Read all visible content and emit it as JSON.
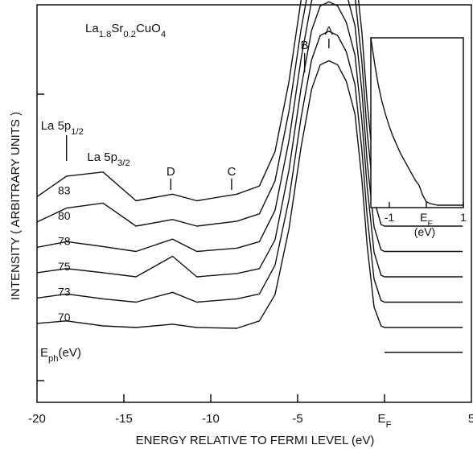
{
  "chart_data": {
    "type": "line",
    "xlabel": "ENERGY RELATIVE TO FERMI LEVEL  (eV)",
    "ylabel": "INTENSITY  ( ARBITRARY UNITS )",
    "xlim": [
      -20,
      5
    ],
    "x_ticks": [
      -20,
      -15,
      -10,
      -5,
      0,
      5
    ],
    "x_tick_labels": [
      "-20",
      "-15",
      "-10",
      "-5",
      "E_F",
      "5"
    ],
    "y_ticks_shown": false,
    "grid": false,
    "compound": {
      "main": "La",
      "parts": [
        [
          "1.8",
          "Sr"
        ],
        [
          "0.2",
          "CuO"
        ],
        [
          "4",
          ""
        ]
      ]
    },
    "photon_energy_label": {
      "main": "E",
      "sub": "ph",
      "rest": "(eV)"
    },
    "peak_labels": [
      {
        "text": "A",
        "x": -3.2
      },
      {
        "text": "B",
        "x": -4.6
      },
      {
        "text": "C",
        "x": -8.8
      },
      {
        "text": "D",
        "x": -12.3
      }
    ],
    "core_level_labels": [
      {
        "main": "La 5p",
        "sub": "1/2",
        "x": -18.3
      },
      {
        "main": "La 5p",
        "sub": "3/2",
        "x": -16.0
      }
    ],
    "series": [
      {
        "name": "70",
        "x": [
          -20,
          -18.3,
          -16.2,
          -14.3,
          -12.2,
          -10.8,
          -8.5,
          -7.2,
          -6.3,
          -5.5,
          -4.8,
          -4.2,
          -3.7,
          -3.2,
          -2.7,
          -2.2,
          -1.7,
          -1.3,
          -1.0,
          -0.6,
          -0.2,
          0,
          1,
          2,
          3,
          4.5
        ],
        "y": [
          0.05,
          0.08,
          0.02,
          0.0,
          0.04,
          0.0,
          -0.01,
          0.08,
          0.4,
          1.2,
          2.2,
          2.9,
          3.2,
          3.25,
          3.2,
          3.0,
          2.6,
          1.8,
          1.0,
          0.25,
          0.02,
          0,
          0,
          0,
          0,
          0
        ]
      },
      {
        "name": "73",
        "x": [
          -20,
          -18.3,
          -16.2,
          -14.3,
          -12.2,
          -10.8,
          -8.5,
          -7.2,
          -6.3,
          -5.5,
          -4.8,
          -4.2,
          -3.7,
          -3.2,
          -2.7,
          -2.2,
          -1.7,
          -1.3,
          -1.0,
          -0.6,
          -0.2,
          0,
          1,
          2,
          3,
          4.5
        ],
        "y": [
          0.05,
          0.1,
          0.04,
          0.0,
          0.12,
          0.0,
          0.04,
          0.1,
          0.45,
          1.25,
          2.25,
          2.95,
          3.25,
          3.3,
          3.25,
          3.05,
          2.65,
          1.85,
          1.05,
          0.28,
          0.02,
          0,
          0,
          0,
          0,
          0
        ]
      },
      {
        "name": "75",
        "x": [
          -20,
          -18.3,
          -16.2,
          -14.3,
          -12.2,
          -10.8,
          -8.5,
          -7.2,
          -6.3,
          -5.5,
          -4.8,
          -4.2,
          -3.7,
          -3.2,
          -2.7,
          -2.2,
          -1.7,
          -1.3,
          -1.0,
          -0.6,
          -0.2,
          0,
          1,
          2,
          3,
          4.5
        ],
        "y": [
          0.05,
          0.1,
          0.05,
          0.0,
          0.25,
          0.0,
          0.04,
          0.1,
          0.45,
          1.3,
          2.3,
          3.0,
          3.3,
          3.35,
          3.3,
          3.1,
          2.7,
          1.9,
          1.1,
          0.3,
          0.02,
          0,
          0,
          0,
          0,
          0
        ]
      },
      {
        "name": "78",
        "x": [
          -20,
          -18.3,
          -16.2,
          -14.3,
          -12.2,
          -10.8,
          -8.5,
          -7.2,
          -6.3,
          -5.5,
          -4.8,
          -4.2,
          -3.7,
          -3.2,
          -2.7,
          -2.2,
          -1.7,
          -1.3,
          -1.0,
          -0.6,
          -0.2,
          0,
          1,
          2,
          3,
          4.5
        ],
        "y": [
          0.05,
          0.12,
          0.06,
          0.0,
          0.15,
          0.0,
          0.04,
          0.12,
          0.5,
          1.35,
          2.35,
          3.05,
          3.35,
          3.4,
          3.35,
          3.15,
          2.75,
          1.95,
          1.1,
          0.3,
          0.02,
          0,
          0,
          0,
          0,
          0
        ]
      },
      {
        "name": "80",
        "x": [
          -20,
          -18.3,
          -16.2,
          -14.3,
          -12.2,
          -10.8,
          -8.5,
          -7.2,
          -6.3,
          -5.5,
          -4.8,
          -4.2,
          -3.7,
          -3.2,
          -2.7,
          -2.2,
          -1.7,
          -1.3,
          -1.0,
          -0.6,
          -0.2,
          0,
          1,
          2,
          3,
          4.5
        ],
        "y": [
          0.05,
          0.22,
          0.28,
          0.0,
          0.08,
          0.0,
          0.06,
          0.15,
          0.55,
          1.4,
          2.4,
          3.1,
          3.4,
          3.45,
          3.4,
          3.2,
          2.8,
          2.0,
          1.15,
          0.32,
          0.02,
          0,
          0,
          0,
          0,
          0
        ]
      },
      {
        "name": "83",
        "x": [
          -20,
          -18.3,
          -16.2,
          -14.3,
          -12.2,
          -10.8,
          -8.5,
          -7.2,
          -6.3,
          -5.5,
          -4.8,
          -4.2,
          -3.7,
          -3.2,
          -2.7,
          -2.2,
          -1.7,
          -1.3,
          -1.0,
          -0.6,
          -0.2,
          0,
          1,
          2,
          3,
          4.5
        ],
        "y": [
          0.05,
          0.3,
          0.35,
          0.0,
          0.08,
          0.0,
          0.08,
          0.18,
          0.6,
          1.45,
          2.45,
          3.15,
          3.45,
          3.5,
          3.45,
          3.25,
          2.85,
          2.05,
          1.2,
          0.34,
          0.02,
          0,
          0,
          0,
          0,
          0
        ]
      }
    ],
    "inset": {
      "xlim": [
        -1.5,
        1
      ],
      "x_ticks": [
        -1,
        0,
        1
      ],
      "x_tick_labels": [
        "-1",
        "E_F",
        "1"
      ],
      "xlabel": "(eV)",
      "x": [
        -1.5,
        -1.4,
        -1.3,
        -1.2,
        -1.1,
        -1.0,
        -0.9,
        -0.8,
        -0.7,
        -0.6,
        -0.5,
        -0.4,
        -0.3,
        -0.2,
        -0.1,
        0.0,
        0.1,
        0.3,
        0.6,
        1.0
      ],
      "y": [
        1.0,
        0.85,
        0.72,
        0.62,
        0.54,
        0.47,
        0.41,
        0.36,
        0.31,
        0.27,
        0.23,
        0.19,
        0.15,
        0.12,
        0.06,
        0.02,
        0.01,
        0.0,
        0.0,
        0.0
      ]
    }
  }
}
